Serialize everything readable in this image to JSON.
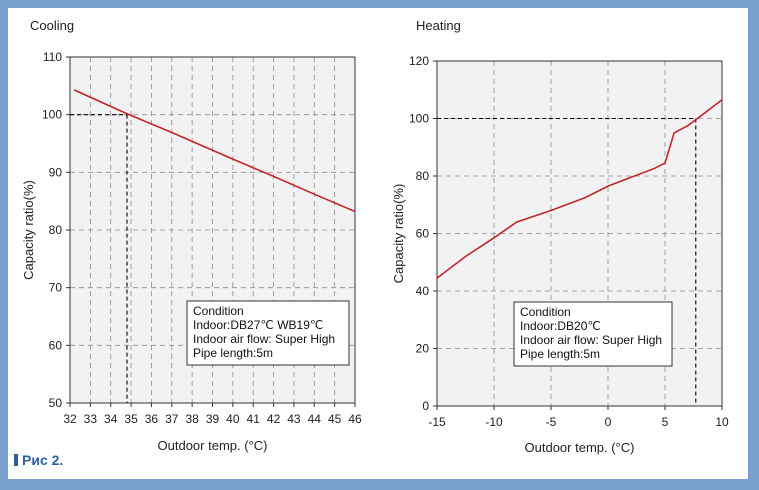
{
  "colors": {
    "line": "#c0262d",
    "plot_bg": "#f2f2f2",
    "grid": "#8c8c8c",
    "frame": "#7aa0cf"
  },
  "caption": "Рис 2.",
  "chart_data": [
    {
      "type": "line",
      "title": "Cooling",
      "xlabel": "Outdoor temp. (°C)",
      "ylabel": "Capacity ratio(%)",
      "xlim": [
        32,
        46
      ],
      "ylim": [
        50,
        110
      ],
      "xticks": [
        32,
        33,
        34,
        35,
        36,
        37,
        38,
        39,
        40,
        41,
        42,
        43,
        44,
        45,
        46
      ],
      "yticks": [
        50,
        60,
        70,
        80,
        90,
        100,
        110
      ],
      "grid": true,
      "series": [
        {
          "x": [
            32.2,
            34.7,
            37,
            40,
            42,
            44,
            46
          ],
          "y": [
            104.3,
            100.3,
            96.9,
            92.3,
            89.3,
            86.2,
            83.2
          ]
        }
      ],
      "reference": {
        "x": 34.8,
        "y": 100
      },
      "condition_box": {
        "position": "bottom-right",
        "lines": [
          "Condition",
          "Indoor:DB27℃ WB19℃",
          "Indoor air flow: Super High",
          "Pipe length:5m"
        ]
      }
    },
    {
      "type": "line",
      "title": "Heating",
      "xlabel": "Outdoor temp. (°C)",
      "ylabel": "Capacity ratio(%)",
      "xlim": [
        -15,
        10
      ],
      "ylim": [
        0,
        120
      ],
      "xticks": [
        -15,
        -10,
        -5,
        0,
        5,
        10
      ],
      "yticks": [
        0,
        20,
        40,
        60,
        80,
        100,
        120
      ],
      "grid": true,
      "series": [
        {
          "x": [
            -15,
            -12.5,
            -10,
            -8,
            -5,
            -2,
            0,
            2,
            4,
            5,
            5.8,
            7,
            8.5,
            10
          ],
          "y": [
            44.5,
            52,
            58.5,
            64,
            68,
            72.5,
            76.5,
            79.5,
            82.5,
            84.5,
            95,
            97.5,
            102,
            106.5
          ]
        }
      ],
      "reference": {
        "x": 7.7,
        "y": 100
      },
      "condition_box": {
        "position": "bottom-right",
        "lines": [
          "Condition",
          "Indoor:DB20℃",
          "Indoor air flow: Super High",
          "Pipe length:5m"
        ]
      }
    }
  ]
}
